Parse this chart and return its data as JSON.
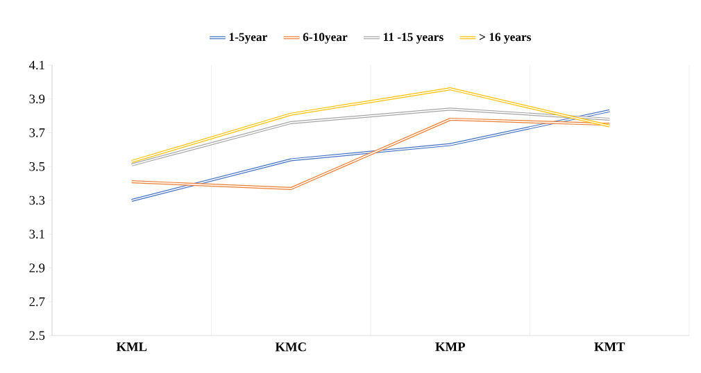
{
  "chart_data": {
    "type": "line",
    "categories": [
      "KML",
      "KMC",
      "KMP",
      "KMT"
    ],
    "series": [
      {
        "name": "1-5year",
        "color": "#4472c4",
        "values": [
          3.3,
          3.54,
          3.63,
          3.83
        ]
      },
      {
        "name": "6-10year",
        "color": "#ed7d31",
        "values": [
          3.41,
          3.37,
          3.78,
          3.75
        ]
      },
      {
        "name": "11 -15 years",
        "color": "#a5a5a5",
        "values": [
          3.51,
          3.76,
          3.84,
          3.78
        ]
      },
      {
        "name": "> 16 years",
        "color": "#ffc000",
        "values": [
          3.53,
          3.81,
          3.96,
          3.74
        ]
      }
    ],
    "ylim": [
      2.5,
      4.1
    ],
    "yticks": [
      2.5,
      2.7,
      2.9,
      3.1,
      3.3,
      3.5,
      3.7,
      3.9,
      4.1
    ],
    "grid": "x",
    "legend": "top",
    "marker": "none",
    "line_style": "solid"
  }
}
